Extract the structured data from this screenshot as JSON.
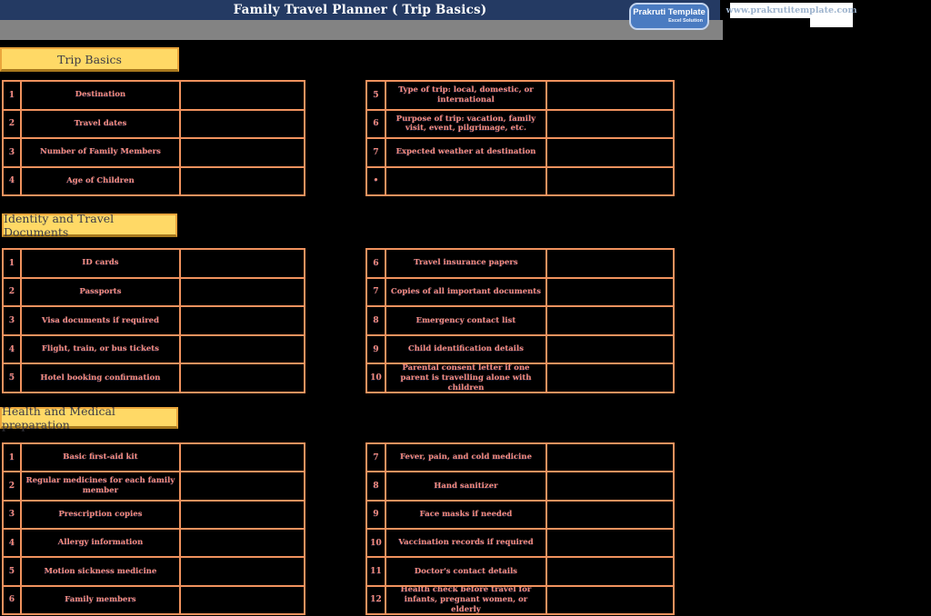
{
  "header": {
    "title": "Family Travel Planner ( Trip Basics)",
    "badge": {
      "title": "Prakruti Template",
      "subtitle": "Excel Solution"
    },
    "website": "www.prakrutitemplate.com"
  },
  "colors": {
    "title_bar_navy": "#243a63",
    "sub_bar_gray": "#838383",
    "section_header_gold": "#ffd966",
    "section_header_border": "#eaa53c",
    "table_border_orange": "#f0925e",
    "row_text_salmon": "#f5897a",
    "badge_blue": "#4a7bc1",
    "background": "#000000"
  },
  "sections": [
    {
      "title": "Trip Basics",
      "left_rows": [
        {
          "num": "1",
          "label": "Destination",
          "value": ""
        },
        {
          "num": "2",
          "label": "Travel dates",
          "value": ""
        },
        {
          "num": "3",
          "label": "Number of Family Members",
          "value": ""
        },
        {
          "num": "4",
          "label": "Age of Children",
          "value": ""
        }
      ],
      "right_rows": [
        {
          "num": "5",
          "label": "Type of trip: local, domestic, or international",
          "value": ""
        },
        {
          "num": "6",
          "label": "Purpose of trip: vacation, family visit, event, pilgrimage, etc.",
          "value": ""
        },
        {
          "num": "7",
          "label": "Expected weather at destination",
          "value": ""
        },
        {
          "num": "•",
          "label": "",
          "value": ""
        }
      ]
    },
    {
      "title": "Identity and Travel Documents",
      "left_rows": [
        {
          "num": "1",
          "label": "ID cards",
          "value": ""
        },
        {
          "num": "2",
          "label": "Passports",
          "value": ""
        },
        {
          "num": "3",
          "label": "Visa documents if required",
          "value": ""
        },
        {
          "num": "4",
          "label": "Flight, train, or bus tickets",
          "value": ""
        },
        {
          "num": "5",
          "label": "Hotel booking confirmation",
          "value": ""
        }
      ],
      "right_rows": [
        {
          "num": "6",
          "label": "Travel insurance papers",
          "value": ""
        },
        {
          "num": "7",
          "label": "Copies of all important documents",
          "value": ""
        },
        {
          "num": "8",
          "label": "Emergency contact list",
          "value": ""
        },
        {
          "num": "9",
          "label": "Child identification details",
          "value": ""
        },
        {
          "num": "10",
          "label": "Parental consent letter if one parent is travelling alone with children",
          "value": ""
        }
      ]
    },
    {
      "title": "Health and Medical preparation",
      "left_rows": [
        {
          "num": "1",
          "label": "Basic first-aid kit",
          "value": ""
        },
        {
          "num": "2",
          "label": "Regular medicines for each family member",
          "value": ""
        },
        {
          "num": "3",
          "label": "Prescription copies",
          "value": ""
        },
        {
          "num": "4",
          "label": "Allergy information",
          "value": ""
        },
        {
          "num": "5",
          "label": "Motion sickness medicine",
          "value": ""
        },
        {
          "num": "6",
          "label": "Family members",
          "value": ""
        }
      ],
      "right_rows": [
        {
          "num": "7",
          "label": "Fever, pain, and cold medicine",
          "value": ""
        },
        {
          "num": "8",
          "label": "Hand sanitizer",
          "value": ""
        },
        {
          "num": "9",
          "label": "Face masks if needed",
          "value": ""
        },
        {
          "num": "10",
          "label": "Vaccination records if required",
          "value": ""
        },
        {
          "num": "11",
          "label": "Doctor's contact details",
          "value": ""
        },
        {
          "num": "12",
          "label": "Health check before travel for infants, pregnant women, or elderly",
          "value": ""
        }
      ]
    }
  ]
}
